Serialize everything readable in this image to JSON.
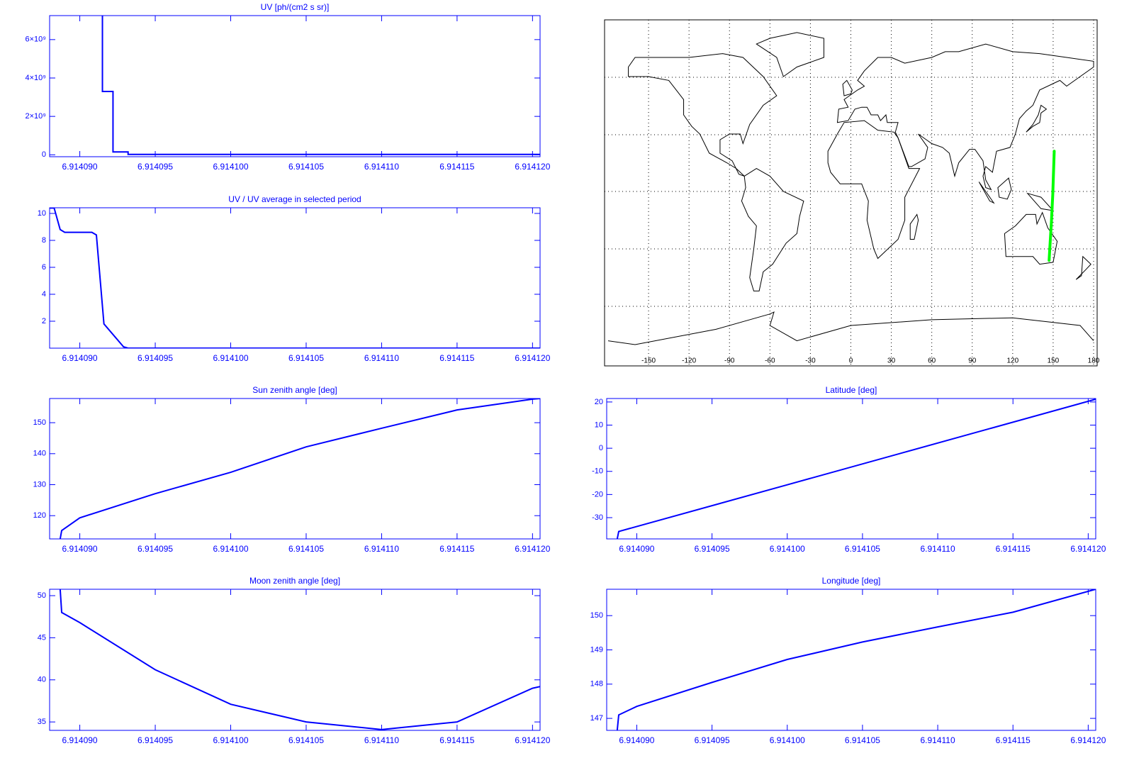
{
  "chart_data": [
    {
      "type": "line",
      "title": "UV [ph/(cm2 s sr)]",
      "x": [
        6.9140915,
        6.9140915,
        6.9140922,
        6.9140922,
        6.9140932,
        6.9140932,
        6.9141205
      ],
      "series": [
        {
          "color": "#0000ff",
          "values": [
            7250000000,
            3300000000,
            3300000000,
            150000000,
            150000000,
            20000000,
            20000000
          ]
        }
      ],
      "xlim": [
        6.914088,
        6.9141205
      ],
      "ylim": [
        -100000000,
        7250000000
      ],
      "xticks": [
        {
          "value": 6.91409,
          "label": "6.914090"
        },
        {
          "value": 6.914095,
          "label": "6.914095"
        },
        {
          "value": 6.9141,
          "label": "6.914100"
        },
        {
          "value": 6.914105,
          "label": "6.914105"
        },
        {
          "value": 6.91411,
          "label": "6.914110"
        },
        {
          "value": 6.914115,
          "label": "6.914115"
        },
        {
          "value": 6.91412,
          "label": "6.914120"
        }
      ],
      "yticks": [
        0,
        {
          "value": 2000000000,
          "label": "2×10⁹"
        },
        {
          "value": 4000000000,
          "label": "4×10⁹"
        },
        {
          "value": 6000000000,
          "label": "6×10⁹"
        }
      ]
    },
    {
      "type": "line",
      "title": "UV / UV average in selected period",
      "x": [
        6.914088,
        6.9140883,
        6.9140887,
        6.914089,
        6.9140908,
        6.9140911,
        6.9140916,
        6.9140929,
        6.9140932,
        6.9141205
      ],
      "series": [
        {
          "color": "#0000ff",
          "values": [
            10.4,
            10.4,
            8.8,
            8.6,
            8.6,
            8.4,
            1.8,
            0.1,
            0,
            0
          ]
        }
      ],
      "xlim": [
        6.914088,
        6.9141205
      ],
      "ylim": [
        0,
        10.42
      ],
      "xticks": [
        {
          "value": 6.91409,
          "label": "6.914090"
        },
        {
          "value": 6.914095,
          "label": "6.914095"
        },
        {
          "value": 6.9141,
          "label": "6.914100"
        },
        {
          "value": 6.914105,
          "label": "6.914105"
        },
        {
          "value": 6.91411,
          "label": "6.914110"
        },
        {
          "value": 6.914115,
          "label": "6.914115"
        },
        {
          "value": 6.91412,
          "label": "6.914120"
        }
      ],
      "yticks": [
        2,
        4,
        6,
        8,
        10
      ]
    },
    {
      "type": "map",
      "xlim": [
        -180,
        180
      ],
      "ylim": [
        -90,
        90
      ],
      "xticks": [
        -150,
        -120,
        -90,
        -60,
        -30,
        0,
        30,
        60,
        90,
        120,
        150,
        180
      ],
      "track": {
        "color": "#00ff00",
        "x": [
          147.0,
          147.5,
          148.7,
          149.7,
          150.8
        ],
        "y": [
          -36,
          -30,
          -16,
          -2,
          21
        ]
      }
    },
    {
      "type": "line",
      "title": "Sun zenith angle [deg]",
      "x": [
        6.9140887,
        6.9140888,
        6.91409,
        6.914095,
        6.9141,
        6.914105,
        6.91411,
        6.914115,
        6.91412,
        6.9141205
      ],
      "series": [
        {
          "color": "#0000ff",
          "values": [
            112.5,
            115.2,
            119.3,
            127.1,
            134,
            142.2,
            148.2,
            154.1,
            157.6,
            157.8
          ]
        }
      ],
      "xlim": [
        6.914088,
        6.9141205
      ],
      "ylim": [
        112.5,
        157.8
      ],
      "xticks": [
        {
          "value": 6.91409,
          "label": "6.914090"
        },
        {
          "value": 6.914095,
          "label": "6.914095"
        },
        {
          "value": 6.9141,
          "label": "6.914100"
        },
        {
          "value": 6.914105,
          "label": "6.914105"
        },
        {
          "value": 6.91411,
          "label": "6.914110"
        },
        {
          "value": 6.914115,
          "label": "6.914115"
        },
        {
          "value": 6.91412,
          "label": "6.914120"
        }
      ],
      "yticks": [
        120,
        130,
        140,
        150
      ]
    },
    {
      "type": "line",
      "title": "Latitude [deg]",
      "x": [
        6.9140887,
        6.9140888,
        6.9141,
        6.9141205
      ],
      "series": [
        {
          "color": "#0000ff",
          "values": [
            -39.2,
            -36,
            -15.8,
            21.2
          ]
        }
      ],
      "xlim": [
        6.914088,
        6.9141205
      ],
      "ylim": [
        -39.2,
        21.5
      ],
      "xticks": [
        {
          "value": 6.91409,
          "label": "6.914090"
        },
        {
          "value": 6.914095,
          "label": "6.914095"
        },
        {
          "value": 6.9141,
          "label": "6.914100"
        },
        {
          "value": 6.914105,
          "label": "6.914105"
        },
        {
          "value": 6.91411,
          "label": "6.914110"
        },
        {
          "value": 6.914115,
          "label": "6.914115"
        },
        {
          "value": 6.91412,
          "label": "6.914120"
        }
      ],
      "yticks": [
        -30,
        -20,
        -10,
        0,
        10,
        20
      ]
    },
    {
      "type": "line",
      "title": "Moon zenith angle [deg]",
      "x": [
        6.9140887,
        6.9140888,
        6.91409,
        6.914095,
        6.9141,
        6.914105,
        6.91411,
        6.914115,
        6.91412,
        6.9141205
      ],
      "series": [
        {
          "color": "#0000ff",
          "values": [
            50.76,
            48,
            46.8,
            41.2,
            37.1,
            35,
            34.1,
            35,
            39,
            39.2
          ]
        }
      ],
      "xlim": [
        6.914088,
        6.9141205
      ],
      "ylim": [
        34,
        50.76
      ],
      "xticks": [
        {
          "value": 6.91409,
          "label": "6.914090"
        },
        {
          "value": 6.914095,
          "label": "6.914095"
        },
        {
          "value": 6.9141,
          "label": "6.914100"
        },
        {
          "value": 6.914105,
          "label": "6.914105"
        },
        {
          "value": 6.91411,
          "label": "6.914110"
        },
        {
          "value": 6.914115,
          "label": "6.914115"
        },
        {
          "value": 6.91412,
          "label": "6.914120"
        }
      ],
      "yticks": [
        35,
        40,
        45,
        50
      ]
    },
    {
      "type": "line",
      "title": "Longitude [deg]",
      "x": [
        6.9140887,
        6.9140888,
        6.91409,
        6.914095,
        6.9141,
        6.914105,
        6.91411,
        6.914115,
        6.9141205
      ],
      "series": [
        {
          "color": "#0000ff",
          "values": [
            146.65,
            147.1,
            147.35,
            148.05,
            148.72,
            149.23,
            149.67,
            150.1,
            150.77
          ]
        }
      ],
      "xlim": [
        6.914088,
        6.9141205
      ],
      "ylim": [
        146.65,
        150.77
      ],
      "xticks": [
        {
          "value": 6.91409,
          "label": "6.914090"
        },
        {
          "value": 6.914095,
          "label": "6.914095"
        },
        {
          "value": 6.9141,
          "label": "6.914100"
        },
        {
          "value": 6.914105,
          "label": "6.914105"
        },
        {
          "value": 6.91411,
          "label": "6.914110"
        },
        {
          "value": 6.914115,
          "label": "6.914115"
        },
        {
          "value": 6.91412,
          "label": "6.914120"
        }
      ],
      "yticks": [
        147,
        148,
        149,
        150
      ]
    }
  ]
}
